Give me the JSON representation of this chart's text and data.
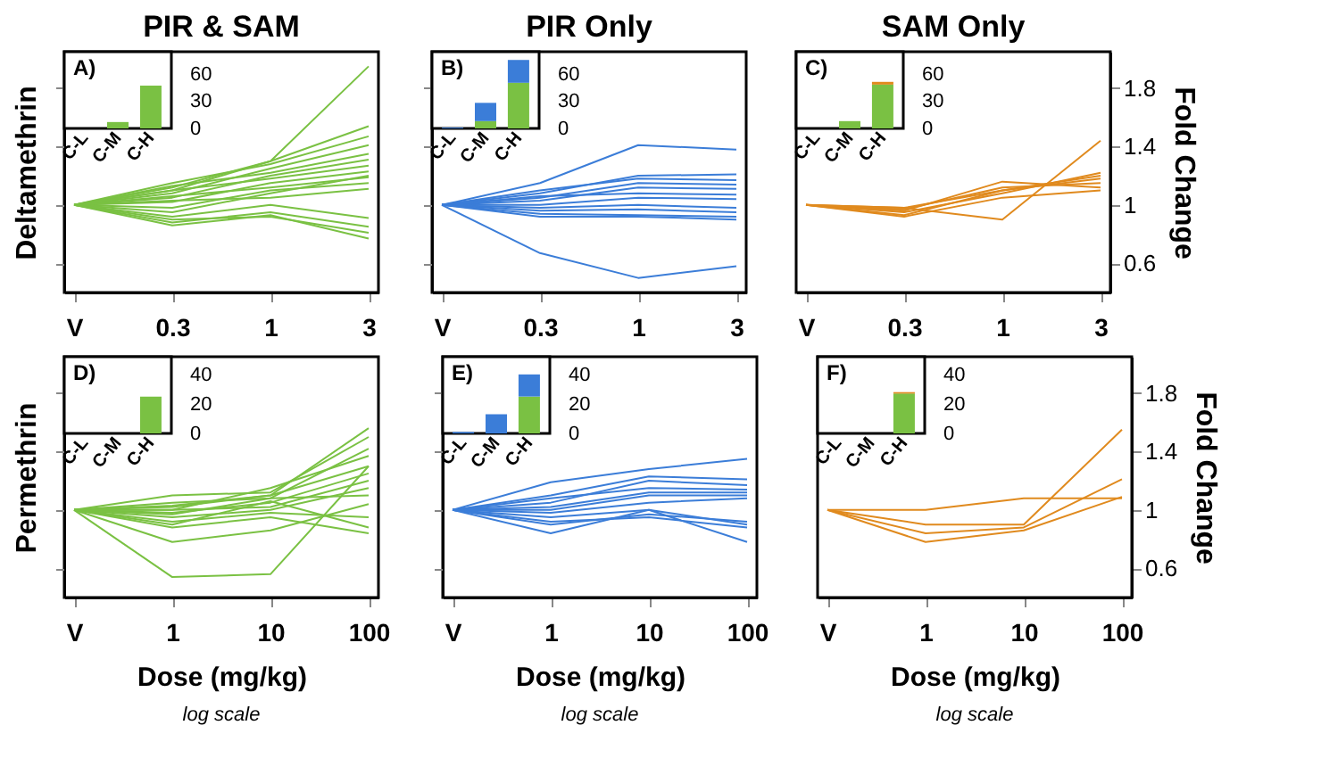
{
  "chart_data": [
    {
      "type": "line",
      "title": "PIR & SAM",
      "ylabel": "Deltamethrin",
      "categories": [
        "V",
        "0.3",
        "1",
        "3"
      ],
      "ylim": [
        0.4,
        2.05
      ],
      "yticks": [
        0.6,
        1,
        1.4,
        1.8
      ],
      "tick_labels": "x",
      "annotations": [
        "A)"
      ],
      "series": [
        {
          "color": "#7ac143",
          "values": [
            1,
            1.1,
            1.3,
            1.95
          ]
        },
        {
          "color": "#7ac143",
          "values": [
            1,
            1.12,
            1.3,
            1.54
          ]
        },
        {
          "color": "#7ac143",
          "values": [
            1,
            1.15,
            1.28,
            1.47
          ]
        },
        {
          "color": "#7ac143",
          "values": [
            1,
            1.08,
            1.25,
            1.41
          ]
        },
        {
          "color": "#7ac143",
          "values": [
            1,
            1.13,
            1.22,
            1.35
          ]
        },
        {
          "color": "#7ac143",
          "values": [
            1,
            1.05,
            1.2,
            1.31
          ]
        },
        {
          "color": "#7ac143",
          "values": [
            1,
            1.1,
            1.18,
            1.27
          ]
        },
        {
          "color": "#7ac143",
          "values": [
            1,
            1.02,
            1.15,
            1.23
          ]
        },
        {
          "color": "#7ac143",
          "values": [
            1,
            1.06,
            1.12,
            1.19
          ]
        },
        {
          "color": "#7ac143",
          "values": [
            1,
            0.98,
            1.1,
            1.15
          ]
        },
        {
          "color": "#7ac143",
          "values": [
            1,
            1.03,
            1.05,
            1.11
          ]
        },
        {
          "color": "#7ac143",
          "values": [
            1,
            0.95,
            1.08,
            1.2
          ]
        },
        {
          "color": "#7ac143",
          "values": [
            1,
            0.92,
            1.0,
            0.91
          ]
        },
        {
          "color": "#7ac143",
          "values": [
            1,
            0.88,
            0.95,
            0.85
          ]
        },
        {
          "color": "#7ac143",
          "values": [
            1,
            0.9,
            0.92,
            0.81
          ]
        },
        {
          "color": "#7ac143",
          "values": [
            1,
            0.86,
            0.93,
            0.77
          ]
        }
      ]
    },
    {
      "type": "bar",
      "stacked": true,
      "categories": [
        "C-L",
        "C-M",
        "C-H"
      ],
      "ylim": [
        0,
        84
      ],
      "yticks": [
        0,
        30,
        60
      ],
      "series": [
        {
          "color": "#7ac143",
          "values": [
            0,
            7,
            47
          ]
        }
      ]
    },
    {
      "type": "line",
      "title": "PIR Only",
      "categories": [
        "V",
        "0.3",
        "1",
        "3"
      ],
      "ylim": [
        0.4,
        2.05
      ],
      "yticks": [
        0.6,
        1,
        1.4,
        1.8
      ],
      "tick_labels": "x",
      "annotations": [
        "B)"
      ],
      "series": [
        {
          "color": "#3b7dd8",
          "values": [
            1,
            1.15,
            1.41,
            1.38
          ]
        },
        {
          "color": "#3b7dd8",
          "values": [
            1,
            1.08,
            1.2,
            1.21
          ]
        },
        {
          "color": "#3b7dd8",
          "values": [
            1,
            1.1,
            1.18,
            1.17
          ]
        },
        {
          "color": "#3b7dd8",
          "values": [
            1,
            1.05,
            1.15,
            1.14
          ]
        },
        {
          "color": "#3b7dd8",
          "values": [
            1,
            1.03,
            1.12,
            1.11
          ]
        },
        {
          "color": "#3b7dd8",
          "values": [
            1,
            1.06,
            1.08,
            1.07
          ]
        },
        {
          "color": "#3b7dd8",
          "values": [
            1,
            1.0,
            1.05,
            1.04
          ]
        },
        {
          "color": "#3b7dd8",
          "values": [
            1,
            0.98,
            1.0,
            0.98
          ]
        },
        {
          "color": "#3b7dd8",
          "values": [
            1,
            0.96,
            0.97,
            0.95
          ]
        },
        {
          "color": "#3b7dd8",
          "values": [
            1,
            0.94,
            0.93,
            0.92
          ]
        },
        {
          "color": "#3b7dd8",
          "values": [
            1,
            0.92,
            0.92,
            0.9
          ]
        },
        {
          "color": "#3b7dd8",
          "values": [
            1,
            0.67,
            0.5,
            0.58
          ]
        }
      ]
    },
    {
      "type": "bar",
      "stacked": true,
      "categories": [
        "C-L",
        "C-M",
        "C-H"
      ],
      "ylim": [
        0,
        84
      ],
      "yticks": [
        0,
        30,
        60
      ],
      "series": [
        {
          "color": "#7ac143",
          "values": [
            0,
            8,
            50
          ]
        },
        {
          "color": "#3b7dd8",
          "values": [
            1,
            20,
            25
          ]
        }
      ]
    },
    {
      "type": "line",
      "title": "SAM Only",
      "ylabel": "Fold Change",
      "categories": [
        "V",
        "0.3",
        "1",
        "3"
      ],
      "ylim": [
        0.4,
        2.05
      ],
      "yticks": [
        0.6,
        1,
        1.4,
        1.8
      ],
      "annotations": [
        "C)"
      ],
      "series": [
        {
          "color": "#e08a1e",
          "values": [
            1,
            0.98,
            0.9,
            1.44
          ]
        },
        {
          "color": "#e08a1e",
          "values": [
            1,
            0.95,
            1.08,
            1.22
          ]
        },
        {
          "color": "#e08a1e",
          "values": [
            1,
            0.93,
            1.1,
            1.18
          ]
        },
        {
          "color": "#e08a1e",
          "values": [
            1,
            0.97,
            1.12,
            1.15
          ]
        },
        {
          "color": "#e08a1e",
          "values": [
            1,
            0.96,
            1.16,
            1.12
          ]
        },
        {
          "color": "#e08a1e",
          "values": [
            1,
            0.92,
            1.05,
            1.1
          ]
        },
        {
          "color": "#e08a1e",
          "values": [
            1,
            0.98,
            1.1,
            1.2
          ]
        }
      ]
    },
    {
      "type": "bar",
      "stacked": true,
      "categories": [
        "C-L",
        "C-M",
        "C-H"
      ],
      "ylim": [
        0,
        84
      ],
      "yticks": [
        0,
        30,
        60
      ],
      "series": [
        {
          "color": "#7ac143",
          "values": [
            0,
            8,
            48
          ]
        },
        {
          "color": "#e08a1e",
          "values": [
            0,
            0,
            3
          ]
        }
      ]
    },
    {
      "type": "line",
      "ylabel": "Permethrin",
      "xlabel": "Dose (mg/kg)",
      "categories": [
        "V",
        "1",
        "10",
        "100"
      ],
      "ylim": [
        0.4,
        2.05
      ],
      "yticks": [
        0.6,
        1,
        1.4,
        1.8
      ],
      "tick_labels": "x",
      "annotations": [
        "D)",
        "log scale"
      ],
      "series": [
        {
          "color": "#7ac143",
          "values": [
            1,
            0.54,
            0.56,
            1.3
          ]
        },
        {
          "color": "#7ac143",
          "values": [
            1,
            0.78,
            0.86,
            1.04
          ]
        },
        {
          "color": "#7ac143",
          "values": [
            1,
            1.02,
            1.1,
            1.56
          ]
        },
        {
          "color": "#7ac143",
          "values": [
            1,
            1.1,
            1.12,
            1.5
          ]
        },
        {
          "color": "#7ac143",
          "values": [
            1,
            1.05,
            1.08,
            1.42
          ]
        },
        {
          "color": "#7ac143",
          "values": [
            1,
            1.0,
            1.15,
            1.37
          ]
        },
        {
          "color": "#7ac143",
          "values": [
            1,
            1.03,
            1.1,
            1.3
          ]
        },
        {
          "color": "#7ac143",
          "values": [
            1,
            0.98,
            1.05,
            1.25
          ]
        },
        {
          "color": "#7ac143",
          "values": [
            1,
            1.0,
            1.02,
            1.2
          ]
        },
        {
          "color": "#7ac143",
          "values": [
            1,
            0.95,
            1.0,
            1.15
          ]
        },
        {
          "color": "#7ac143",
          "values": [
            1,
            0.97,
            1.08,
            1.1
          ]
        },
        {
          "color": "#7ac143",
          "values": [
            1,
            0.92,
            0.98,
            0.95
          ]
        },
        {
          "color": "#7ac143",
          "values": [
            1,
            0.9,
            1.06,
            0.88
          ]
        },
        {
          "color": "#7ac143",
          "values": [
            1,
            0.88,
            0.95,
            0.84
          ]
        }
      ]
    },
    {
      "type": "bar",
      "stacked": true,
      "categories": [
        "C-L",
        "C-M",
        "C-H"
      ],
      "ylim": [
        0,
        52
      ],
      "yticks": [
        0,
        20,
        40
      ],
      "series": [
        {
          "color": "#7ac143",
          "values": [
            0,
            0,
            25
          ]
        }
      ]
    },
    {
      "type": "line",
      "xlabel": "Dose (mg/kg)",
      "categories": [
        "V",
        "1",
        "10",
        "100"
      ],
      "ylim": [
        0.4,
        2.05
      ],
      "yticks": [
        0.6,
        1,
        1.4,
        1.8
      ],
      "tick_labels": "x",
      "annotations": [
        "E)",
        "log scale"
      ],
      "series": [
        {
          "color": "#3b7dd8",
          "values": [
            1,
            1.19,
            1.28,
            1.35
          ]
        },
        {
          "color": "#3b7dd8",
          "values": [
            1,
            1.1,
            1.23,
            1.21
          ]
        },
        {
          "color": "#3b7dd8",
          "values": [
            1,
            1.05,
            1.2,
            1.17
          ]
        },
        {
          "color": "#3b7dd8",
          "values": [
            1,
            1.08,
            1.15,
            1.14
          ]
        },
        {
          "color": "#3b7dd8",
          "values": [
            1,
            1.02,
            1.12,
            1.12
          ]
        },
        {
          "color": "#3b7dd8",
          "values": [
            1,
            1.0,
            1.1,
            1.1
          ]
        },
        {
          "color": "#3b7dd8",
          "values": [
            1,
            0.98,
            1.05,
            1.08
          ]
        },
        {
          "color": "#3b7dd8",
          "values": [
            1,
            0.95,
            1.0,
            0.9
          ]
        },
        {
          "color": "#3b7dd8",
          "values": [
            1,
            0.9,
            0.97,
            0.92
          ]
        },
        {
          "color": "#3b7dd8",
          "values": [
            1,
            0.92,
            0.95,
            0.88
          ]
        },
        {
          "color": "#3b7dd8",
          "values": [
            1,
            0.84,
            1.0,
            0.78
          ]
        }
      ]
    },
    {
      "type": "bar",
      "stacked": true,
      "categories": [
        "C-L",
        "C-M",
        "C-H"
      ],
      "ylim": [
        0,
        52
      ],
      "yticks": [
        0,
        20,
        40
      ],
      "series": [
        {
          "color": "#7ac143",
          "values": [
            0,
            0,
            25
          ]
        },
        {
          "color": "#3b7dd8",
          "values": [
            1,
            13,
            15
          ]
        }
      ]
    },
    {
      "type": "line",
      "ylabel": "Fold Change",
      "xlabel": "Dose (mg/kg)",
      "categories": [
        "V",
        "1",
        "10",
        "100"
      ],
      "ylim": [
        0.4,
        2.05
      ],
      "yticks": [
        0.6,
        1,
        1.4,
        1.8
      ],
      "annotations": [
        "F)",
        "log scale"
      ],
      "series": [
        {
          "color": "#e08a1e",
          "values": [
            1,
            1.0,
            1.08,
            1.08
          ]
        },
        {
          "color": "#e08a1e",
          "values": [
            1,
            0.9,
            0.9,
            1.55
          ]
        },
        {
          "color": "#e08a1e",
          "values": [
            1,
            0.84,
            0.88,
            1.21
          ]
        },
        {
          "color": "#e08a1e",
          "values": [
            1,
            0.78,
            0.86,
            1.09
          ]
        }
      ]
    },
    {
      "type": "bar",
      "stacked": true,
      "categories": [
        "C-L",
        "C-M",
        "C-H"
      ],
      "ylim": [
        0,
        52
      ],
      "yticks": [
        0,
        20,
        40
      ],
      "series": [
        {
          "color": "#7ac143",
          "values": [
            0,
            0,
            27
          ]
        },
        {
          "color": "#e08a1e",
          "values": [
            0,
            0,
            1
          ]
        }
      ]
    }
  ]
}
